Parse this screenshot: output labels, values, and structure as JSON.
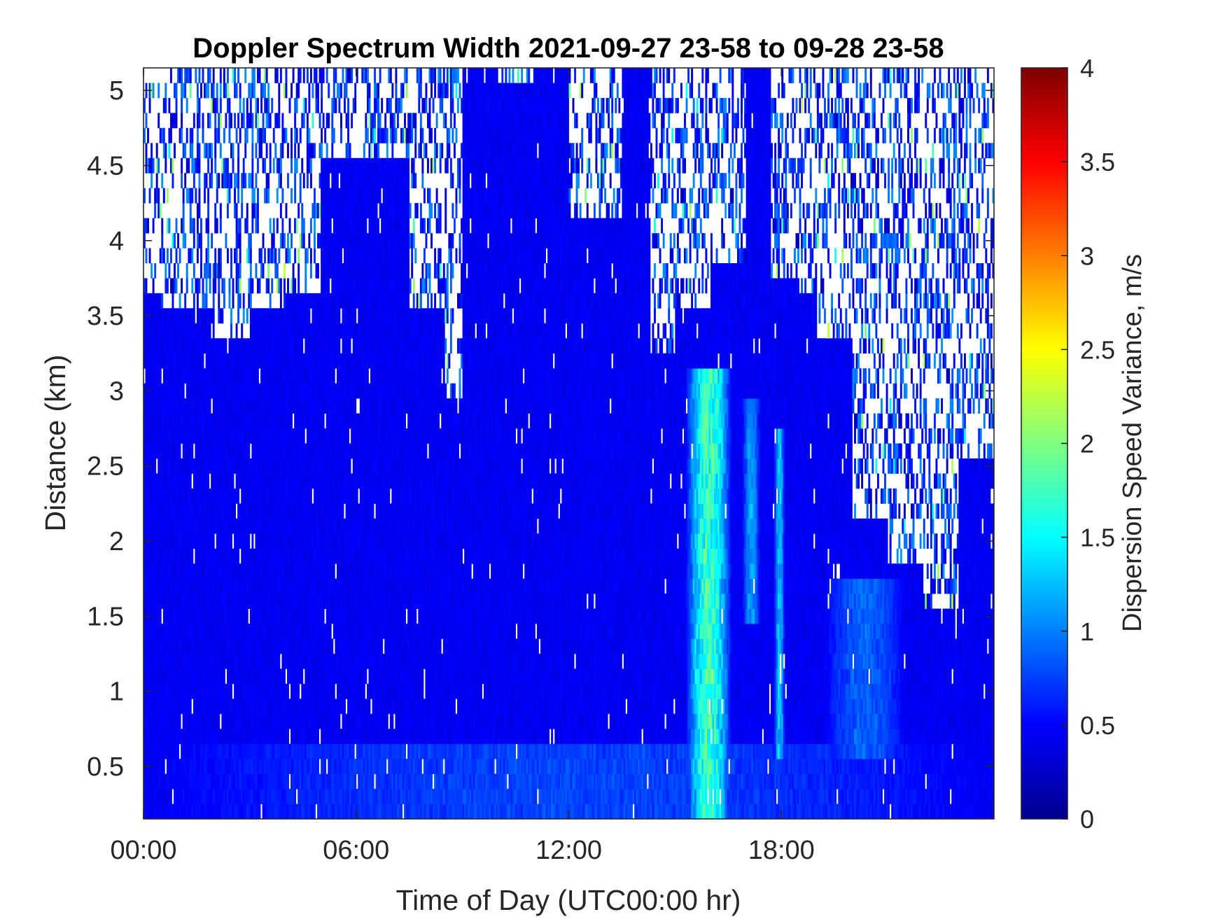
{
  "chart_data": {
    "type": "heatmap",
    "title": "Doppler Spectrum Width 2021-09-27 23-58 to 09-28 23-58",
    "xlabel": "Time of Day (UTC00:00 hr)",
    "ylabel": "Distance (km)",
    "x_unit": "hour of day",
    "xlim": [
      0,
      24
    ],
    "ylim": [
      0.15,
      5.15
    ],
    "x_ticks": [
      0,
      6,
      12,
      18
    ],
    "x_tick_labels": [
      "00:00",
      "06:00",
      "12:00",
      "18:00"
    ],
    "y_ticks": [
      0.5,
      1,
      1.5,
      2,
      2.5,
      3,
      3.5,
      4,
      4.5,
      5
    ],
    "y_tick_labels": [
      "0.5",
      "1",
      "1.5",
      "2",
      "2.5",
      "3",
      "3.5",
      "4",
      "4.5",
      "5"
    ],
    "colorbar": {
      "label": "Dispersion Speed Variance, m/s",
      "clim": [
        0,
        4
      ],
      "ticks": [
        0,
        0.5,
        1,
        1.5,
        2,
        2.5,
        3,
        3.5,
        4
      ],
      "tick_labels": [
        "0",
        "0.5",
        "1",
        "1.5",
        "2",
        "2.5",
        "3",
        "3.5",
        "4"
      ],
      "colormap": "jet"
    },
    "missing_color": "#ffffff",
    "background_value": 0.45,
    "data_coverage": [
      {
        "x": [
          0,
          0.5
        ],
        "top": 3.65
      },
      {
        "x": [
          0.5,
          1
        ],
        "top": 3.6
      },
      {
        "x": [
          1,
          2
        ],
        "top": 3.55
      },
      {
        "x": [
          2,
          3
        ],
        "top": 3.35
      },
      {
        "x": [
          3,
          4
        ],
        "top": 3.55
      },
      {
        "x": [
          4,
          5
        ],
        "top": 3.7
      },
      {
        "x": [
          5,
          6
        ],
        "top": 4.55
      },
      {
        "x": [
          6,
          7.5
        ],
        "top": 4.55
      },
      {
        "x": [
          7.5,
          8.5
        ],
        "top": 3.6
      },
      {
        "x": [
          8.5,
          9
        ],
        "top": 3.0
      },
      {
        "x": [
          9,
          10
        ],
        "top": 5.15
      },
      {
        "x": [
          10,
          11
        ],
        "top": 5.0
      },
      {
        "x": [
          11,
          12
        ],
        "top": 5.15
      },
      {
        "x": [
          12,
          13.5
        ],
        "top": 4.2
      },
      {
        "x": [
          13.5,
          14.3
        ],
        "top": 5.15
      },
      {
        "x": [
          14.3,
          15
        ],
        "top": 3.3
      },
      {
        "x": [
          15,
          16
        ],
        "top": 3.6
      },
      {
        "x": [
          16,
          17
        ],
        "top": 3.9
      },
      {
        "x": [
          17,
          17.7
        ],
        "top": 5.15
      },
      {
        "x": [
          17.7,
          18.5
        ],
        "top": 3.8
      },
      {
        "x": [
          18.5,
          19
        ],
        "top": 3.65
      },
      {
        "x": [
          19,
          20
        ],
        "top": 3.4
      },
      {
        "x": [
          20,
          21
        ],
        "top": 2.2
      },
      {
        "x": [
          21,
          22
        ],
        "top": 1.9
      },
      {
        "x": [
          22,
          23
        ],
        "top": 1.6
      },
      {
        "x": [
          23,
          24
        ],
        "top": 2.6
      }
    ],
    "high_variance_regions": [
      {
        "x": [
          15.3,
          16.6
        ],
        "y": [
          0.15,
          3.2
        ],
        "peak": 2.1
      },
      {
        "x": [
          16.9,
          17.4
        ],
        "y": [
          1.5,
          3.0
        ],
        "peak": 1.3
      },
      {
        "x": [
          17.8,
          18.1
        ],
        "y": [
          0.5,
          2.8
        ],
        "peak": 1.5
      },
      {
        "x": [
          19.2,
          21.5
        ],
        "y": [
          0.6,
          1.8
        ],
        "peak": 1.0
      },
      {
        "x": [
          0,
          24
        ],
        "y": [
          0.15,
          0.6
        ],
        "peak": 0.85
      }
    ]
  }
}
